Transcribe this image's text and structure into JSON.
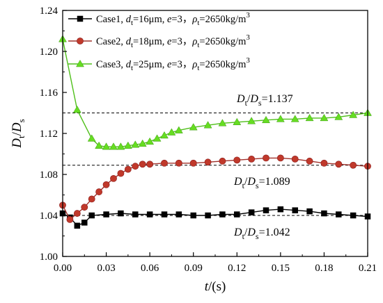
{
  "chart_data": {
    "type": "line",
    "xlabel_var": "t",
    "xlabel_unit": "/(s)",
    "ylabel_num": "D",
    "ylabel_num_sub": "t",
    "ylabel_den": "D",
    "ylabel_den_sub": "s",
    "xlim": [
      0.0,
      0.21
    ],
    "ylim": [
      1.0,
      1.24
    ],
    "xticks": [
      0.0,
      0.03,
      0.06,
      0.09,
      0.12,
      0.15,
      0.18,
      0.21
    ],
    "xtick_labels": [
      "0.00",
      "0.03",
      "0.06",
      "0.09",
      "0.12",
      "0.15",
      "0.18",
      "0.21"
    ],
    "yticks": [
      1.0,
      1.04,
      1.08,
      1.12,
      1.16,
      1.2,
      1.24
    ],
    "ytick_labels": [
      "1.00",
      "1.04",
      "1.08",
      "1.12",
      "1.16",
      "1.20",
      "1.24"
    ],
    "legend_position": "top-left",
    "grid": false,
    "series": [
      {
        "name": "Case1",
        "legend": {
          "case": "Case1, ",
          "d": "d",
          "d_sub": "t",
          "d_val": "=16μm, ",
          "e": "e",
          "e_val": "=3，",
          "rho": "ρ",
          "rho_sub": "t",
          "rho_val": "=2650kg/m",
          "rho_sup": "3"
        },
        "color": "#000000",
        "marker": "square",
        "x": [
          0.0,
          0.005,
          0.01,
          0.015,
          0.02,
          0.03,
          0.04,
          0.05,
          0.06,
          0.07,
          0.08,
          0.09,
          0.1,
          0.11,
          0.12,
          0.13,
          0.14,
          0.15,
          0.16,
          0.17,
          0.18,
          0.19,
          0.2,
          0.21
        ],
        "y": [
          1.042,
          1.038,
          1.03,
          1.033,
          1.04,
          1.041,
          1.042,
          1.041,
          1.041,
          1.041,
          1.041,
          1.04,
          1.04,
          1.041,
          1.041,
          1.043,
          1.045,
          1.046,
          1.045,
          1.044,
          1.042,
          1.041,
          1.04,
          1.039
        ]
      },
      {
        "name": "Case2",
        "legend": {
          "case": "Case2, ",
          "d": "d",
          "d_sub": "t",
          "d_val": "=18μm, ",
          "e": "e",
          "e_val": "=3，",
          "rho": "ρ",
          "rho_sub": "t",
          "rho_val": "=2650kg/m",
          "rho_sup": "3"
        },
        "color": "#c0392b",
        "marker": "circle",
        "x": [
          0.0,
          0.005,
          0.01,
          0.015,
          0.02,
          0.025,
          0.03,
          0.035,
          0.04,
          0.045,
          0.05,
          0.055,
          0.06,
          0.07,
          0.08,
          0.09,
          0.1,
          0.11,
          0.12,
          0.13,
          0.14,
          0.15,
          0.16,
          0.17,
          0.18,
          0.19,
          0.2,
          0.21
        ],
        "y": [
          1.05,
          1.036,
          1.042,
          1.048,
          1.056,
          1.063,
          1.07,
          1.076,
          1.081,
          1.085,
          1.088,
          1.09,
          1.09,
          1.091,
          1.091,
          1.091,
          1.092,
          1.093,
          1.094,
          1.095,
          1.096,
          1.096,
          1.095,
          1.093,
          1.091,
          1.09,
          1.089,
          1.088
        ]
      },
      {
        "name": "Case3",
        "legend": {
          "case": "Case3, ",
          "d": "d",
          "d_sub": "t",
          "d_val": "=25μm, ",
          "e": "e",
          "e_val": "=3，",
          "rho": "ρ",
          "rho_sub": "t",
          "rho_val": "=2650kg/m",
          "rho_sup": "3"
        },
        "color": "#66dd22",
        "marker": "triangle",
        "x": [
          0.0,
          0.01,
          0.02,
          0.025,
          0.03,
          0.035,
          0.04,
          0.045,
          0.05,
          0.055,
          0.06,
          0.065,
          0.07,
          0.075,
          0.08,
          0.09,
          0.1,
          0.11,
          0.12,
          0.13,
          0.14,
          0.15,
          0.16,
          0.17,
          0.18,
          0.19,
          0.2,
          0.21
        ],
        "y": [
          1.212,
          1.143,
          1.115,
          1.108,
          1.107,
          1.107,
          1.107,
          1.108,
          1.109,
          1.11,
          1.112,
          1.115,
          1.118,
          1.121,
          1.123,
          1.126,
          1.128,
          1.13,
          1.131,
          1.132,
          1.133,
          1.134,
          1.134,
          1.135,
          1.135,
          1.136,
          1.138,
          1.14
        ]
      }
    ],
    "reference_lines": [
      {
        "y": 1.14,
        "label_num": "D",
        "label_num_sub": "t",
        "label_den": "D",
        "label_den_sub": "s",
        "label_value": "=1.137"
      },
      {
        "y": 1.089,
        "label_num": "D",
        "label_num_sub": "t",
        "label_den": "D",
        "label_den_sub": "s",
        "label_value": "=1.089"
      },
      {
        "y": 1.04,
        "label_num": "D",
        "label_num_sub": "t",
        "label_den": "D",
        "label_den_sub": "s",
        "label_value": "=1.042"
      }
    ]
  }
}
